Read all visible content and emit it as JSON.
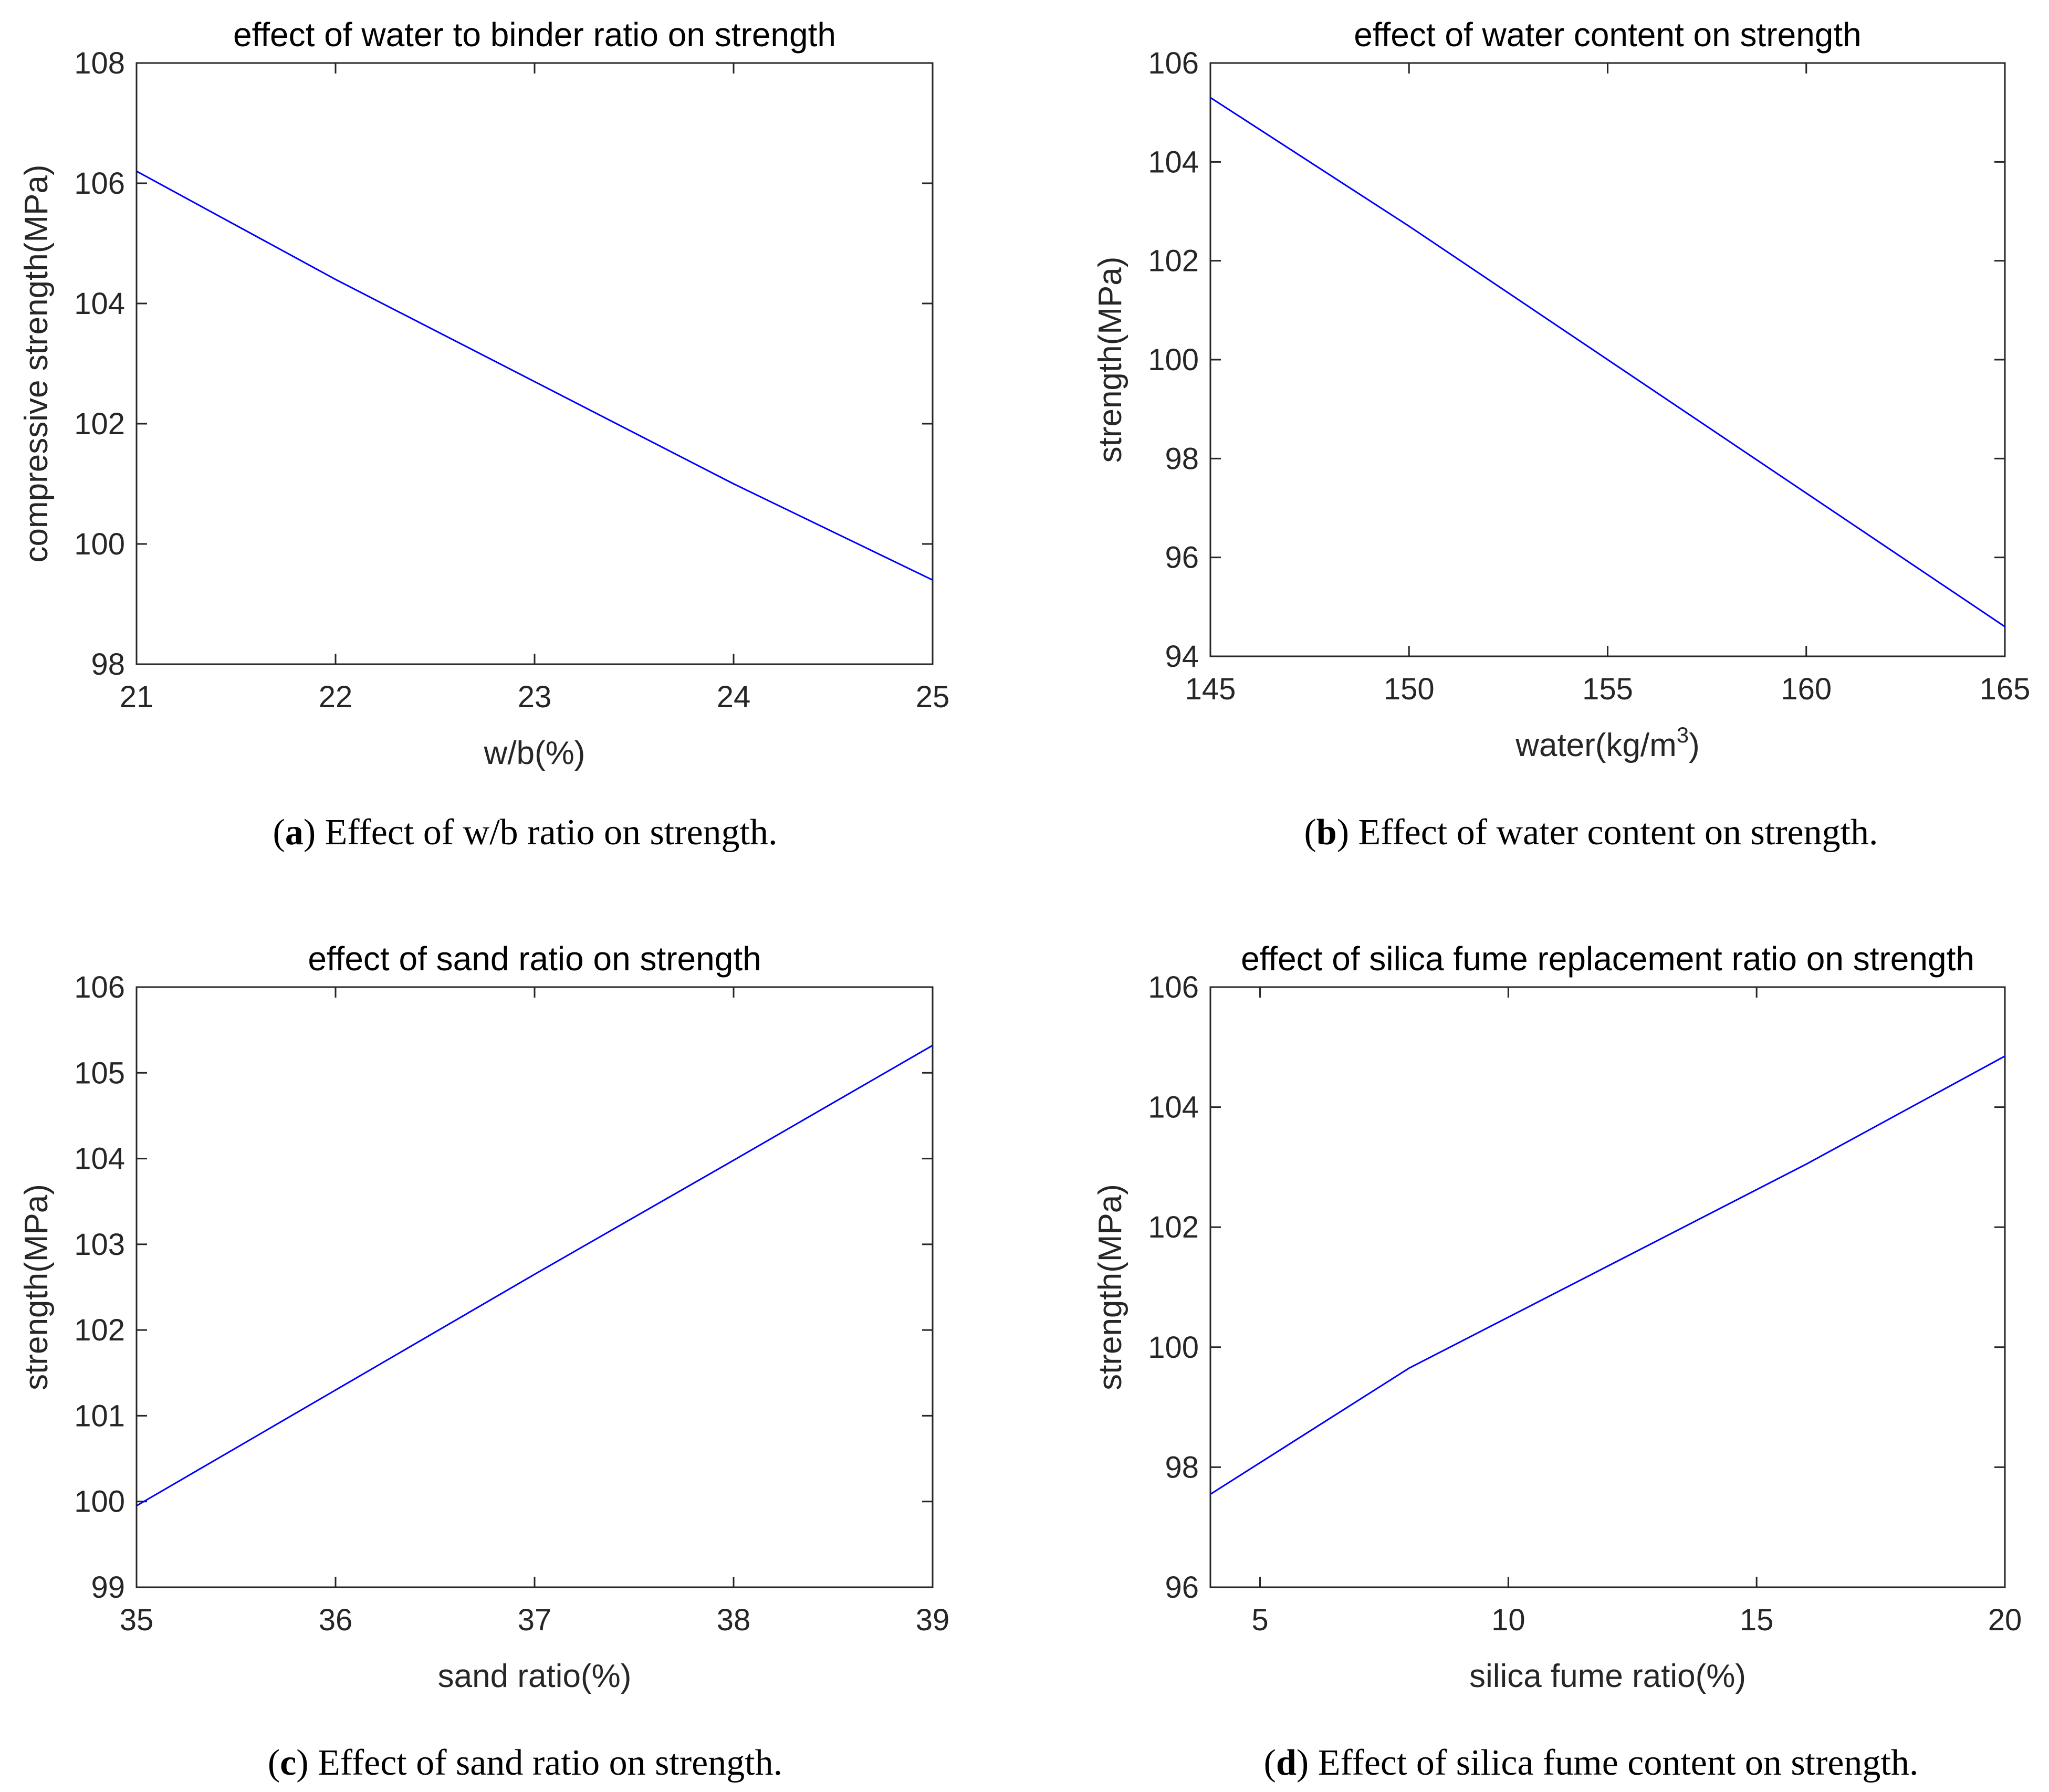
{
  "colors": {
    "line": "#0000ff",
    "axis": "#262626",
    "frame": "#262626"
  },
  "captions": [
    {
      "letter": "a",
      "text": " Effect of w/b ratio on strength."
    },
    {
      "letter": "b",
      "text": " Effect of water content on strength."
    },
    {
      "letter": "c",
      "text": " Effect of sand ratio on strength."
    },
    {
      "letter": "d",
      "text": " Effect of silica fume content on strength."
    }
  ],
  "chart_data": [
    {
      "id": "a",
      "type": "line",
      "title": "effect of water to binder ratio on strength",
      "xlabel": "w/b(%)",
      "xlabel_sup": "",
      "xlabel_tail": "",
      "ylabel": "compressive strength(MPa)",
      "xlim": [
        21,
        25
      ],
      "ylim": [
        98,
        108
      ],
      "xticks": [
        21,
        22,
        23,
        24,
        25
      ],
      "yticks": [
        98,
        100,
        102,
        104,
        106,
        108
      ],
      "series": [
        {
          "name": "strength",
          "x": [
            21,
            22,
            23,
            24,
            25
          ],
          "y": [
            106.2,
            104.4,
            102.7,
            101.0,
            99.4
          ]
        }
      ]
    },
    {
      "id": "b",
      "type": "line",
      "title": "effect of water content on strength",
      "xlabel": "water(kg/m",
      "xlabel_sup": "3",
      "xlabel_tail": ")",
      "ylabel": "strength(MPa)",
      "xlim": [
        145,
        165
      ],
      "ylim": [
        94,
        106
      ],
      "xticks": [
        145,
        150,
        155,
        160,
        165
      ],
      "yticks": [
        94,
        96,
        98,
        100,
        102,
        104,
        106
      ],
      "series": [
        {
          "name": "strength",
          "x": [
            145,
            150,
            155,
            160,
            165
          ],
          "y": [
            105.3,
            102.7,
            100.0,
            97.3,
            94.6
          ]
        }
      ]
    },
    {
      "id": "c",
      "type": "line",
      "title": "effect of sand ratio on strength",
      "xlabel": "sand ratio(%)",
      "xlabel_sup": "",
      "xlabel_tail": "",
      "ylabel": "strength(MPa)",
      "xlim": [
        35,
        39
      ],
      "ylim": [
        99,
        106
      ],
      "xticks": [
        35,
        36,
        37,
        38,
        39
      ],
      "yticks": [
        99,
        100,
        101,
        102,
        103,
        104,
        105,
        106
      ],
      "series": [
        {
          "name": "strength",
          "x": [
            35,
            36,
            37,
            38,
            39
          ],
          "y": [
            99.95,
            101.3,
            102.65,
            103.98,
            105.32
          ]
        }
      ]
    },
    {
      "id": "d",
      "type": "line",
      "title": "effect of silica fume replacement ratio on strength",
      "xlabel": "silica fume ratio(%)",
      "xlabel_sup": "",
      "xlabel_tail": "",
      "ylabel": "strength(MPa)",
      "xlim": [
        4,
        20
      ],
      "ylim": [
        96,
        106
      ],
      "xticks": [
        5,
        10,
        15,
        20
      ],
      "yticks": [
        96,
        98,
        100,
        102,
        104,
        106
      ],
      "series": [
        {
          "name": "strength",
          "x": [
            4,
            8,
            12,
            16,
            20
          ],
          "y": [
            97.55,
            99.65,
            101.35,
            103.05,
            104.85
          ]
        }
      ]
    }
  ]
}
